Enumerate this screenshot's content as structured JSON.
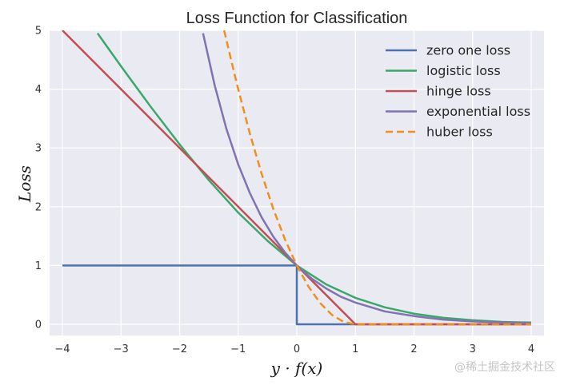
{
  "chart_data": {
    "type": "line",
    "title": "Loss Function for Classification",
    "xlabel": "y · f(x)",
    "ylabel": "Loss",
    "xlim": [
      -4,
      4
    ],
    "ylim": [
      0,
      5
    ],
    "xticks": [
      "−4",
      "−3",
      "−2",
      "−1",
      "0",
      "1",
      "2",
      "3",
      "4"
    ],
    "yticks": [
      "0",
      "1",
      "2",
      "3",
      "4",
      "5"
    ],
    "grid": true,
    "legend_position": "top-right",
    "series": [
      {
        "name": "zero one loss",
        "color": "#4c72b0",
        "dashed": false,
        "x": [
          -4,
          0,
          0,
          4
        ],
        "y": [
          1,
          1,
          0,
          0
        ]
      },
      {
        "name": "logistic loss",
        "color": "#3aa86b",
        "dashed": false,
        "x": [
          -3.4,
          -3,
          -2.5,
          -2,
          -1.5,
          -1,
          -0.5,
          0,
          0.5,
          1,
          1.5,
          2,
          2.5,
          3,
          3.5,
          4
        ],
        "y": [
          4.95,
          4.39,
          3.71,
          3.06,
          2.45,
          1.9,
          1.42,
          1.0,
          0.68,
          0.45,
          0.29,
          0.18,
          0.11,
          0.07,
          0.04,
          0.03
        ]
      },
      {
        "name": "hinge loss",
        "color": "#c44e52",
        "dashed": false,
        "x": [
          -4,
          -3,
          -2,
          -1,
          0,
          1,
          2,
          3,
          4
        ],
        "y": [
          5,
          4,
          3,
          2,
          1,
          0,
          0,
          0,
          0
        ]
      },
      {
        "name": "exponential loss",
        "color": "#8172b2",
        "dashed": false,
        "x": [
          -1.6,
          -1.4,
          -1.2,
          -1.0,
          -0.8,
          -0.6,
          -0.4,
          -0.2,
          0,
          0.25,
          0.5,
          0.75,
          1.0,
          1.5,
          2,
          2.5,
          3,
          3.5,
          4
        ],
        "y": [
          4.95,
          4.06,
          3.32,
          2.72,
          2.23,
          1.82,
          1.49,
          1.22,
          1.0,
          0.78,
          0.61,
          0.47,
          0.37,
          0.22,
          0.14,
          0.08,
          0.05,
          0.03,
          0.02
        ]
      },
      {
        "name": "huber loss",
        "color": "#f28e1c",
        "dashed": true,
        "x": [
          -1.24,
          -1.1,
          -1.0,
          -0.8,
          -0.6,
          -0.4,
          -0.2,
          0,
          0.2,
          0.4,
          0.6,
          0.8,
          1.0,
          2,
          3,
          4
        ],
        "y": [
          5.0,
          4.41,
          4.0,
          3.24,
          2.56,
          1.96,
          1.44,
          1.0,
          0.64,
          0.36,
          0.16,
          0.04,
          0,
          0,
          0,
          0
        ]
      }
    ]
  },
  "watermark": "@稀土掘金技术社区"
}
